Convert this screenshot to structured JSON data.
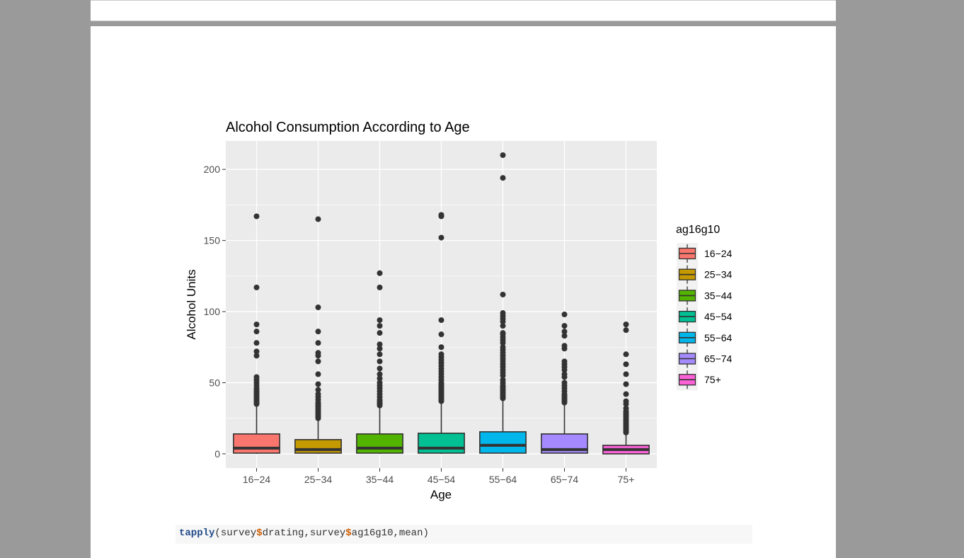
{
  "code": {
    "fn": "tapply",
    "parts": [
      "(survey",
      "$",
      "drating,survey",
      "$",
      "ag16g10,mean)"
    ]
  },
  "chart_data": {
    "type": "boxplot",
    "title": "Alcohol Consumption According to Age",
    "xlabel": "Age",
    "ylabel": "Alcohol Units",
    "ylim": [
      -10,
      220
    ],
    "yticks": [
      0,
      50,
      100,
      150,
      200
    ],
    "grid": true,
    "background_color": "#ebebeb",
    "legend": {
      "title": "ag16g10",
      "position": "right"
    },
    "categories": [
      "16−24",
      "25−34",
      "35−44",
      "45−54",
      "55−64",
      "65−74",
      "75+"
    ],
    "colors": [
      "#f8766d",
      "#c49a00",
      "#53b400",
      "#00c094",
      "#00b6eb",
      "#a58aff",
      "#fb61d7"
    ],
    "boxes": [
      {
        "category": "16−24",
        "q1": 0.5,
        "median": 4,
        "q3": 14,
        "whisker_low": 0,
        "whisker_high": 34,
        "outliers": [
          35,
          36,
          37,
          38,
          39,
          40,
          41,
          42,
          43,
          44,
          45,
          46,
          48,
          50,
          52,
          54,
          69,
          72,
          78,
          86,
          91,
          117,
          167
        ]
      },
      {
        "category": "25−34",
        "q1": 0.5,
        "median": 3,
        "q3": 10,
        "whisker_low": 0,
        "whisker_high": 25,
        "outliers": [
          25,
          26,
          27,
          28,
          29,
          30,
          31,
          32,
          33,
          34,
          35,
          36,
          38,
          40,
          42,
          45,
          49,
          56,
          65,
          69,
          71,
          78,
          86,
          103,
          165
        ]
      },
      {
        "category": "35−44",
        "q1": 0.5,
        "median": 4,
        "q3": 14,
        "whisker_low": 0,
        "whisker_high": 33,
        "outliers": [
          34,
          35,
          36,
          37,
          38,
          40,
          42,
          44,
          46,
          48,
          50,
          53,
          56,
          60,
          65,
          70,
          74,
          77,
          85,
          90,
          94,
          117,
          127
        ]
      },
      {
        "category": "45−54",
        "q1": 0.5,
        "median": 4,
        "q3": 14.5,
        "whisker_low": 0,
        "whisker_high": 36,
        "outliers": [
          37,
          38,
          39,
          40,
          41,
          42,
          43,
          44,
          45,
          46,
          47,
          48,
          49,
          50,
          52,
          54,
          56,
          58,
          60,
          62,
          64,
          66,
          68,
          70,
          75,
          84,
          94,
          152,
          167,
          168
        ]
      },
      {
        "category": "55−64",
        "q1": 0.5,
        "median": 6,
        "q3": 15.5,
        "whisker_low": 0,
        "whisker_high": 38,
        "outliers": [
          39,
          40,
          41,
          42,
          43,
          44,
          45,
          46,
          47,
          48,
          50,
          52,
          55,
          57,
          59,
          61,
          63,
          65,
          67,
          69,
          71,
          73,
          75,
          78,
          80,
          82,
          84,
          85,
          90,
          93,
          95,
          97,
          99,
          112,
          194,
          210
        ]
      },
      {
        "category": "65−74",
        "q1": 0.5,
        "median": 3,
        "q3": 14,
        "whisker_low": 0,
        "whisker_high": 35,
        "outliers": [
          36,
          37,
          38,
          39,
          40,
          41,
          42,
          44,
          46,
          48,
          50,
          54,
          56,
          59,
          61,
          63,
          65,
          74,
          76,
          83,
          86,
          90,
          98
        ]
      },
      {
        "category": "75+",
        "q1": 0,
        "median": 3,
        "q3": 6,
        "whisker_low": 0,
        "whisker_high": 14,
        "outliers": [
          15,
          16,
          17,
          18,
          19,
          20,
          21,
          22,
          23,
          24,
          25,
          26,
          27,
          28,
          29,
          30,
          32,
          35,
          37,
          42,
          49,
          56,
          63,
          70,
          87,
          91
        ]
      }
    ]
  }
}
